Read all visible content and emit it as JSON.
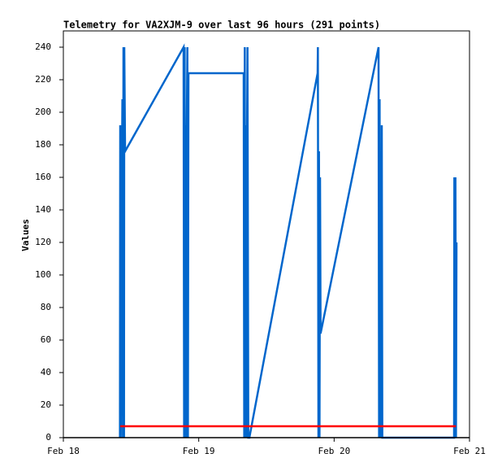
{
  "chart_data": {
    "type": "line",
    "title": "Telemetry for VA2XJM-9 over last 96 hours (291 points)",
    "y_label": "Values",
    "xlim": [
      18,
      21
    ],
    "xticks": [
      {
        "value": 18,
        "label": "Feb 18"
      },
      {
        "value": 19,
        "label": "Feb 19"
      },
      {
        "value": 20,
        "label": "Feb 20"
      },
      {
        "value": 21,
        "label": "Feb 21"
      }
    ],
    "ylim": [
      0,
      250
    ],
    "yticks": [
      0,
      20,
      40,
      60,
      80,
      100,
      120,
      140,
      160,
      180,
      200,
      220,
      240
    ],
    "series": [
      {
        "color": "#0066cc",
        "x": [
          18.418,
          18.42,
          18.424,
          18.43,
          18.436,
          18.44,
          18.444,
          18.448,
          18.45,
          18.456,
          18.888,
          18.892,
          18.896,
          18.9,
          18.904,
          18.908,
          18.912,
          18.916,
          18.92,
          18.924,
          19.332,
          19.336,
          19.34,
          19.344,
          19.348,
          19.352,
          19.356,
          19.36,
          19.366,
          19.374,
          19.878,
          19.88,
          19.884,
          19.888,
          19.892,
          19.896,
          19.9,
          20.328,
          20.332,
          20.336,
          20.34,
          20.344,
          20.348,
          20.352,
          20.356,
          20.886,
          20.888,
          20.892,
          20.896,
          20.9,
          20.904
        ],
        "values": [
          0,
          192,
          0,
          128,
          208,
          0,
          240,
          0,
          240,
          176,
          240,
          0,
          240,
          0,
          192,
          0,
          192,
          240,
          0,
          224,
          224,
          0,
          240,
          0,
          192,
          0,
          176,
          240,
          0,
          0,
          224,
          240,
          0,
          176,
          0,
          160,
          64,
          240,
          0,
          208,
          0,
          160,
          0,
          192,
          0,
          0,
          160,
          0,
          160,
          0,
          120
        ]
      },
      {
        "color": "#ff0000",
        "x": [
          18.42,
          20.9
        ],
        "values": [
          7,
          7
        ]
      }
    ]
  }
}
